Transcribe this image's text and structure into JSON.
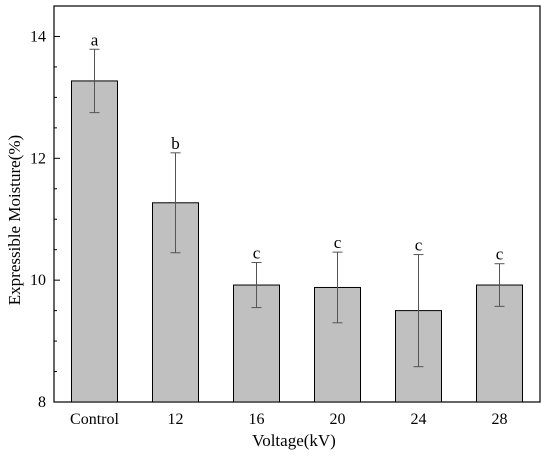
{
  "chart_data": {
    "type": "bar",
    "title": "",
    "xlabel": "Voltage(kV)",
    "ylabel": "Expressible Moisture(%)",
    "categories": [
      "Control",
      "12",
      "16",
      "20",
      "24",
      "28"
    ],
    "values": [
      13.27,
      11.27,
      9.92,
      9.88,
      9.5,
      9.92
    ],
    "errors": [
      0.52,
      0.82,
      0.37,
      0.58,
      0.92,
      0.35
    ],
    "significance": [
      "a",
      "b",
      "c",
      "c",
      "c",
      "c"
    ],
    "ylim": [
      8,
      14.5
    ],
    "yticks": [
      8,
      10,
      12,
      14
    ],
    "grid": false,
    "colors": {
      "bar": "#c0c0c0",
      "edge": "#000000",
      "error": "#555555"
    }
  }
}
